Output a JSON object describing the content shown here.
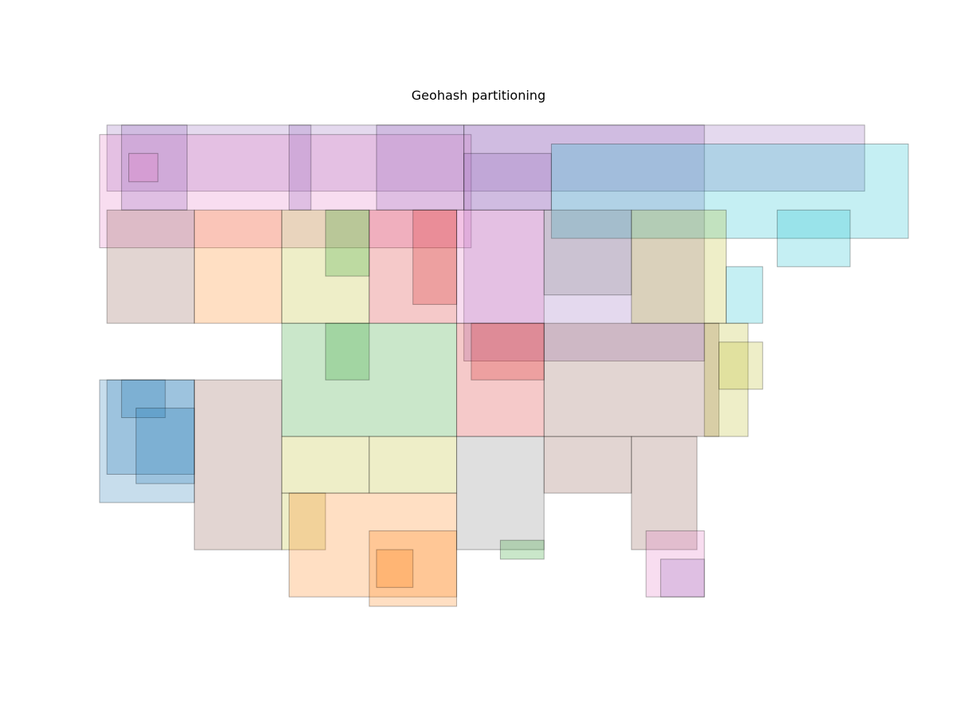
{
  "chart_data": {
    "type": "rectangles",
    "title": "Geohash partitioning",
    "xlabel": "",
    "ylabel": "",
    "grid": false,
    "axes_visible": false,
    "xlim": [
      -125,
      -66
    ],
    "ylim": [
      24,
      50
    ],
    "palette": {
      "blue": "#1f77b4",
      "orange": "#ff7f0e",
      "green": "#2ca02c",
      "red": "#d62728",
      "purple": "#9467bd",
      "brown": "#8c564b",
      "pink": "#e377c2",
      "gray": "#7f7f7f",
      "olive": "#bcbd22",
      "cyan": "#17becf"
    },
    "boxes": [
      {
        "x0": -121.0,
        "x1": -69.0,
        "y0": 46.0,
        "y1": 49.5,
        "color": "purple"
      },
      {
        "x0": -121.5,
        "x1": -96.0,
        "y0": 43.0,
        "y1": 49.0,
        "color": "pink"
      },
      {
        "x0": -120.0,
        "x1": -115.5,
        "y0": 45.0,
        "y1": 49.5,
        "color": "purple"
      },
      {
        "x0": -108.5,
        "x1": -107.0,
        "y0": 45.0,
        "y1": 49.5,
        "color": "purple"
      },
      {
        "x0": -102.5,
        "x1": -96.5,
        "y0": 45.0,
        "y1": 49.5,
        "color": "purple"
      },
      {
        "x0": -119.5,
        "x1": -117.5,
        "y0": 46.5,
        "y1": 48.0,
        "color": "pink"
      },
      {
        "x0": -96.5,
        "x1": -80.0,
        "y0": 37.0,
        "y1": 49.5,
        "color": "purple"
      },
      {
        "x0": -96.5,
        "x1": -90.5,
        "y0": 45.0,
        "y1": 48.0,
        "color": "purple"
      },
      {
        "x0": -90.5,
        "x1": -66.0,
        "y0": 43.5,
        "y1": 48.5,
        "color": "cyan"
      },
      {
        "x0": -121.0,
        "x1": -115.0,
        "y0": 39.0,
        "y1": 45.0,
        "color": "brown"
      },
      {
        "x0": -115.0,
        "x1": -109.0,
        "y0": 39.0,
        "y1": 45.0,
        "color": "orange"
      },
      {
        "x0": -109.0,
        "x1": -103.0,
        "y0": 39.0,
        "y1": 45.0,
        "color": "olive"
      },
      {
        "x0": -106.0,
        "x1": -103.0,
        "y0": 41.5,
        "y1": 45.0,
        "color": "green"
      },
      {
        "x0": -103.0,
        "x1": -97.0,
        "y0": 39.0,
        "y1": 45.0,
        "color": "red"
      },
      {
        "x0": -100.0,
        "x1": -97.0,
        "y0": 40.0,
        "y1": 45.0,
        "color": "red"
      },
      {
        "x0": -97.0,
        "x1": -91.0,
        "y0": 39.0,
        "y1": 45.0,
        "color": "pink"
      },
      {
        "x0": -91.0,
        "x1": -85.0,
        "y0": 40.5,
        "y1": 45.0,
        "color": "gray"
      },
      {
        "x0": -85.0,
        "x1": -78.5,
        "y0": 39.0,
        "y1": 45.0,
        "color": "olive"
      },
      {
        "x0": -78.5,
        "x1": -76.0,
        "y0": 39.0,
        "y1": 42.0,
        "color": "cyan"
      },
      {
        "x0": -75.0,
        "x1": -70.0,
        "y0": 42.0,
        "y1": 45.0,
        "color": "cyan"
      },
      {
        "x0": -109.0,
        "x1": -97.0,
        "y0": 33.0,
        "y1": 39.0,
        "color": "green"
      },
      {
        "x0": -106.0,
        "x1": -103.0,
        "y0": 36.0,
        "y1": 39.0,
        "color": "green"
      },
      {
        "x0": -97.0,
        "x1": -91.0,
        "y0": 33.0,
        "y1": 39.0,
        "color": "red"
      },
      {
        "x0": -96.0,
        "x1": -91.0,
        "y0": 36.0,
        "y1": 39.0,
        "color": "red"
      },
      {
        "x0": -121.5,
        "x1": -115.0,
        "y0": 29.5,
        "y1": 36.0,
        "color": "blue"
      },
      {
        "x0": -121.0,
        "x1": -115.0,
        "y0": 31.0,
        "y1": 36.0,
        "color": "blue"
      },
      {
        "x0": -120.0,
        "x1": -117.0,
        "y0": 34.0,
        "y1": 36.0,
        "color": "blue"
      },
      {
        "x0": -119.0,
        "x1": -115.0,
        "y0": 30.5,
        "y1": 34.5,
        "color": "blue"
      },
      {
        "x0": -115.0,
        "x1": -109.0,
        "y0": 27.0,
        "y1": 36.0,
        "color": "brown"
      },
      {
        "x0": -109.0,
        "x1": -103.0,
        "y0": 30.0,
        "y1": 33.0,
        "color": "olive"
      },
      {
        "x0": -103.0,
        "x1": -97.0,
        "y0": 30.0,
        "y1": 33.0,
        "color": "olive"
      },
      {
        "x0": -109.0,
        "x1": -106.0,
        "y0": 27.0,
        "y1": 30.0,
        "color": "olive"
      },
      {
        "x0": -108.5,
        "x1": -97.0,
        "y0": 24.5,
        "y1": 30.0,
        "color": "orange"
      },
      {
        "x0": -103.0,
        "x1": -97.0,
        "y0": 24.0,
        "y1": 28.0,
        "color": "orange"
      },
      {
        "x0": -102.5,
        "x1": -100.0,
        "y0": 25.0,
        "y1": 27.0,
        "color": "orange"
      },
      {
        "x0": -97.0,
        "x1": -91.0,
        "y0": 27.0,
        "y1": 33.0,
        "color": "gray"
      },
      {
        "x0": -94.0,
        "x1": -91.0,
        "y0": 26.5,
        "y1": 27.5,
        "color": "green"
      },
      {
        "x0": -91.0,
        "x1": -85.0,
        "y0": 30.0,
        "y1": 33.0,
        "color": "brown"
      },
      {
        "x0": -85.0,
        "x1": -80.5,
        "y0": 27.0,
        "y1": 33.0,
        "color": "brown"
      },
      {
        "x0": -84.0,
        "x1": -80.0,
        "y0": 24.5,
        "y1": 28.0,
        "color": "pink"
      },
      {
        "x0": -83.0,
        "x1": -80.0,
        "y0": 24.5,
        "y1": 26.5,
        "color": "purple"
      },
      {
        "x0": -91.0,
        "x1": -79.0,
        "y0": 33.0,
        "y1": 39.0,
        "color": "brown"
      },
      {
        "x0": -80.0,
        "x1": -77.0,
        "y0": 33.0,
        "y1": 39.0,
        "color": "olive"
      },
      {
        "x0": -79.0,
        "x1": -76.0,
        "y0": 35.5,
        "y1": 38.0,
        "color": "olive"
      }
    ]
  }
}
